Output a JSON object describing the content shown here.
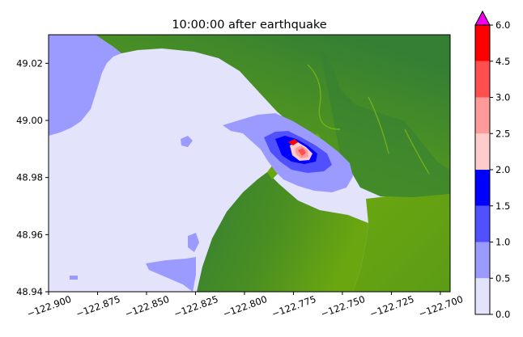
{
  "chart_data": {
    "type": "heatmap",
    "title": "10:00:00 after earthquake",
    "xlabel": "",
    "ylabel": "",
    "xlim": [
      -122.9,
      -122.695
    ],
    "ylim": [
      48.94,
      49.03
    ],
    "x_ticks": [
      "−122.900",
      "−122.875",
      "−122.850",
      "−122.825",
      "−122.800",
      "−122.775",
      "−122.750",
      "−122.725",
      "−122.700"
    ],
    "x_tick_values": [
      -122.9,
      -122.875,
      -122.85,
      -122.825,
      -122.8,
      -122.775,
      -122.75,
      -122.725,
      -122.7
    ],
    "y_ticks": [
      "48.94",
      "48.96",
      "48.98",
      "49.00",
      "49.02"
    ],
    "y_tick_values": [
      48.94,
      48.96,
      48.98,
      49.0,
      49.02
    ],
    "colorbar": {
      "levels": [
        0.0,
        0.5,
        1.0,
        1.5,
        2.0,
        2.5,
        3.0,
        4.5,
        6.0
      ],
      "labels": [
        "0.0",
        "0.5",
        "1.0",
        "1.5",
        "2.0",
        "2.5",
        "3.0",
        "4.5",
        "6.0"
      ],
      "colors": [
        "#e3e3fb",
        "#9b9bff",
        "#5050ff",
        "#0000ff",
        "#ffcccc",
        "#ff9a9a",
        "#ff4f4f",
        "#ff0000"
      ],
      "extend_color": "#ee00ee"
    },
    "land_colors": {
      "lowland": "#6aa610",
      "upland": "#347f34"
    },
    "water_color": "#e3e3fb"
  }
}
